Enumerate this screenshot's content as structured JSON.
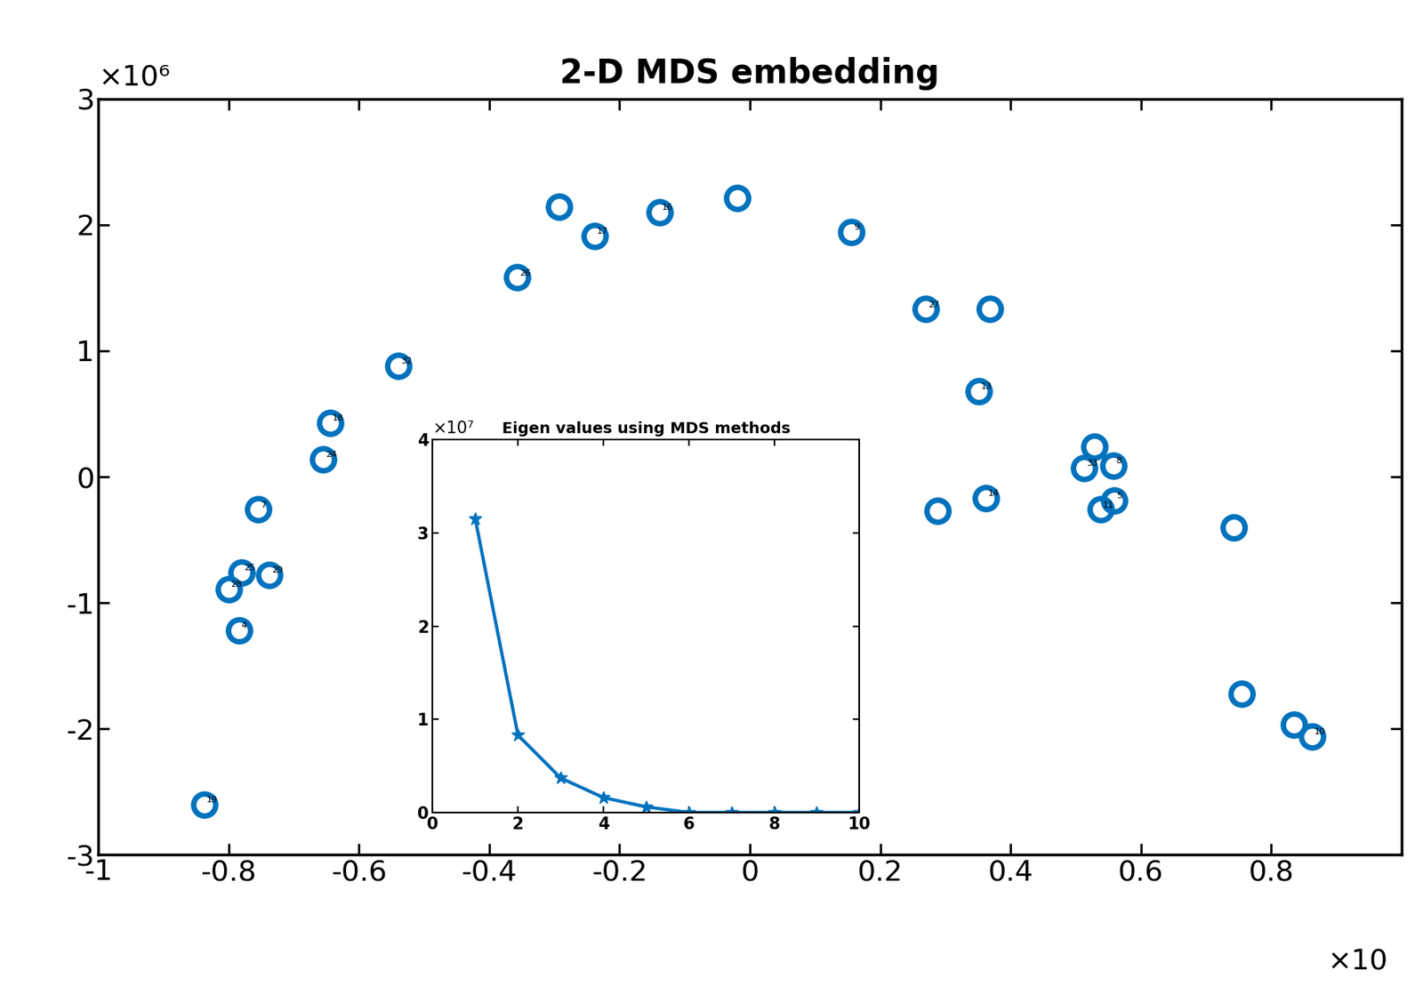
{
  "chart_data": [
    {
      "type": "scatter",
      "title": "2-D MDS embedding",
      "x": [
        -0.837,
        -0.784,
        -0.8,
        -0.78,
        -0.737,
        -0.754,
        -0.655,
        -0.644,
        -0.539,
        -0.357,
        -0.293,
        -0.238,
        -0.138,
        -0.02,
        0.156,
        0.27,
        0.368,
        0.351,
        0.362,
        0.288,
        0.528,
        0.513,
        0.558,
        0.538,
        0.559,
        0.742,
        0.754,
        0.835,
        0.863
      ],
      "values": [
        -2.6,
        -1.22,
        -0.89,
        -0.76,
        -0.78,
        -0.26,
        0.14,
        0.43,
        0.88,
        1.58,
        2.14,
        1.91,
        2.1,
        2.21,
        1.94,
        1.33,
        1.33,
        0.68,
        -0.17,
        -0.27,
        0.24,
        0.07,
        0.09,
        -0.26,
        -0.19,
        -0.4,
        -1.72,
        -1.97,
        -2.06
      ],
      "labels": [
        "19",
        "4",
        "28",
        "25",
        "29",
        "7",
        "24",
        "18",
        "32",
        "26",
        null,
        "17",
        "16",
        null,
        "9",
        "27",
        null,
        "13",
        "14",
        null,
        null,
        "33",
        "8",
        "11",
        "5",
        null,
        null,
        null,
        "10"
      ],
      "color": "#0072BD",
      "marker": "o",
      "xlim": [
        -1,
        1
      ],
      "xticks": [
        -1,
        -0.8,
        -0.6,
        -0.4,
        -0.2,
        0,
        0.2,
        0.4,
        0.6,
        0.8
      ],
      "ylim": [
        -3,
        3
      ],
      "yticks": [
        -3,
        -2,
        -1,
        0,
        1,
        2,
        3
      ],
      "x_multiplier_label": "×10",
      "y_multiplier_label": "×10⁶"
    },
    {
      "type": "line",
      "title": "Eigen values using MDS methods",
      "x": [
        1,
        2,
        3,
        4,
        5,
        6,
        7,
        8,
        9,
        10
      ],
      "values": [
        3.15,
        0.83,
        0.37,
        0.16,
        0.06,
        0,
        0,
        0,
        0,
        0
      ],
      "color": "#0072BD",
      "marker": "*",
      "xlim": [
        0,
        10
      ],
      "xticks": [
        0,
        2,
        4,
        6,
        8,
        10
      ],
      "ylim": [
        0,
        4
      ],
      "yticks": [
        0,
        1,
        2,
        3,
        4
      ],
      "y_multiplier_label": "×10⁷"
    }
  ]
}
